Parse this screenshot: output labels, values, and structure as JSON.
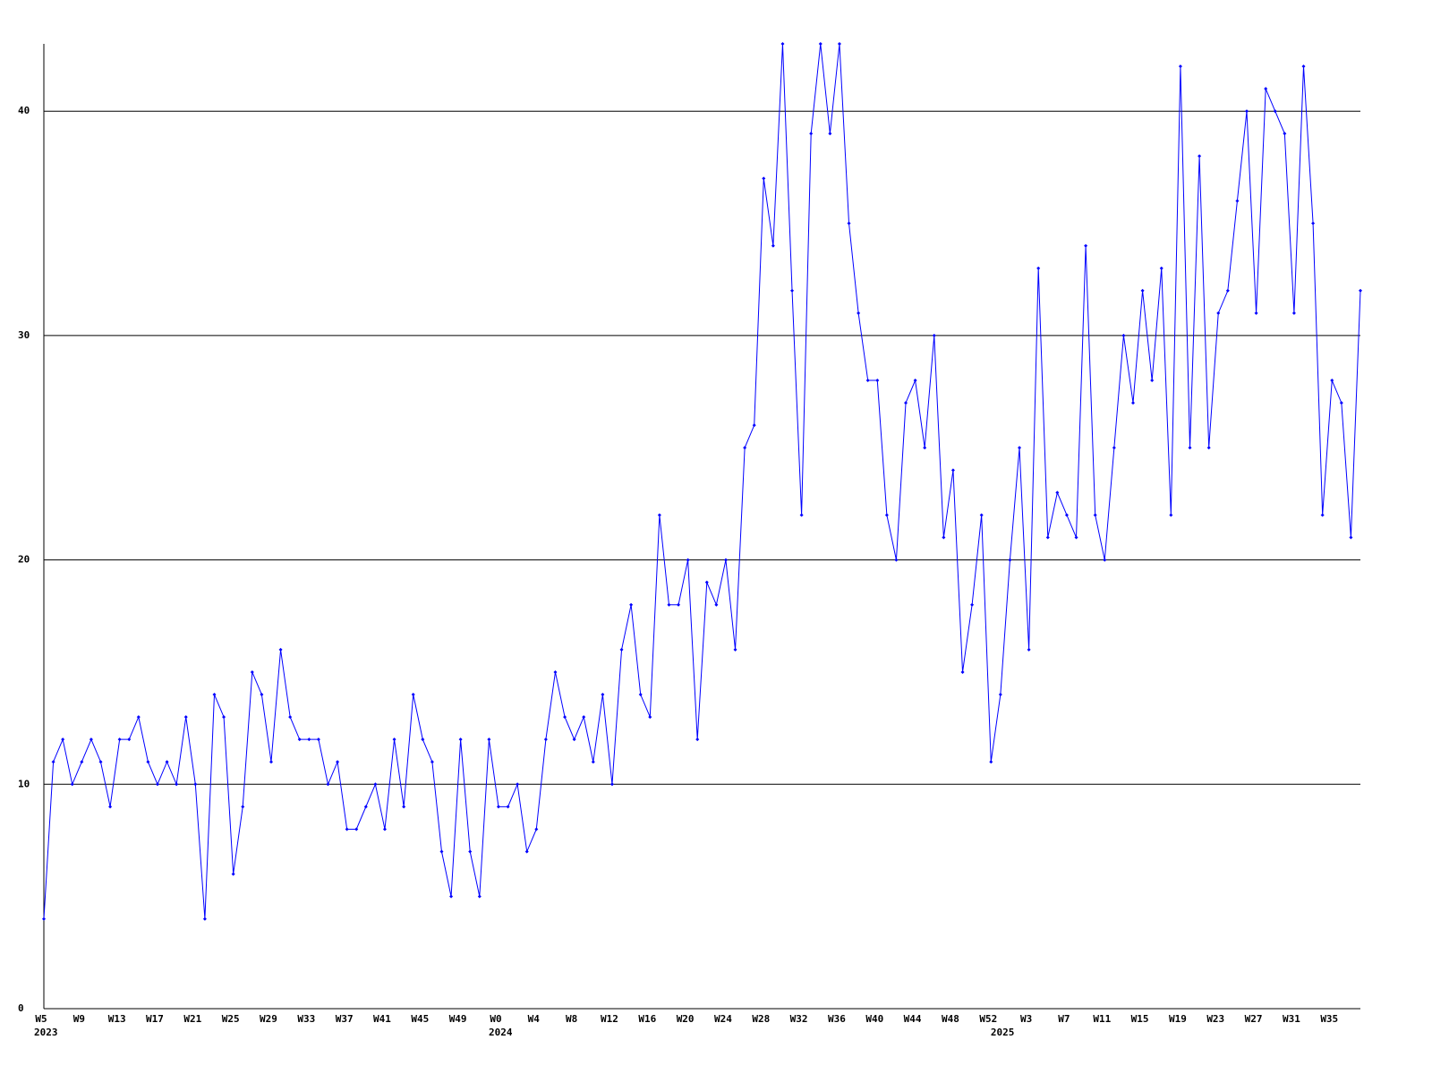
{
  "chart_data": {
    "type": "line",
    "color": "#0000ff",
    "grid": true,
    "ylim": [
      0,
      43
    ],
    "yticks": [
      0,
      10,
      20,
      30,
      40
    ],
    "categories": [
      "W5",
      null,
      null,
      null,
      "W9",
      null,
      null,
      null,
      "W13",
      null,
      null,
      null,
      "W17",
      null,
      null,
      null,
      "W21",
      null,
      null,
      null,
      "W25",
      null,
      null,
      null,
      "W29",
      null,
      null,
      null,
      "W33",
      null,
      null,
      null,
      "W37",
      null,
      null,
      null,
      "W41",
      null,
      null,
      null,
      "W45",
      null,
      null,
      null,
      "W49",
      null,
      null,
      null,
      "W0",
      null,
      null,
      null,
      "W4",
      null,
      null,
      null,
      "W8",
      null,
      null,
      null,
      "W12",
      null,
      null,
      null,
      "W16",
      null,
      null,
      null,
      "W20",
      null,
      null,
      null,
      "W24",
      null,
      null,
      null,
      "W28",
      null,
      null,
      null,
      "W32",
      null,
      null,
      null,
      "W36",
      null,
      null,
      null,
      "W40",
      null,
      null,
      null,
      "W44",
      null,
      null,
      null,
      "W48",
      null,
      null,
      null,
      "W52",
      null,
      null,
      null,
      "W3",
      null,
      null,
      null,
      "W7",
      null,
      null,
      null,
      "W11",
      null,
      null,
      null,
      "W15",
      null,
      null,
      null,
      "W19",
      null,
      null,
      null,
      "W23",
      null,
      null,
      null,
      "W27",
      null,
      null,
      null,
      "W31",
      null,
      null,
      null,
      "W35",
      null,
      null,
      null
    ],
    "years": [
      "2023",
      null,
      null,
      null,
      null,
      null,
      null,
      null,
      null,
      null,
      null,
      null,
      null,
      null,
      null,
      null,
      null,
      null,
      null,
      null,
      null,
      null,
      null,
      null,
      null,
      null,
      null,
      null,
      null,
      null,
      null,
      null,
      null,
      null,
      null,
      null,
      null,
      null,
      null,
      null,
      null,
      null,
      null,
      null,
      null,
      null,
      null,
      null,
      "2024",
      null,
      null,
      null,
      null,
      null,
      null,
      null,
      null,
      null,
      null,
      null,
      null,
      null,
      null,
      null,
      null,
      null,
      null,
      null,
      null,
      null,
      null,
      null,
      null,
      null,
      null,
      null,
      null,
      null,
      null,
      null,
      null,
      null,
      null,
      null,
      null,
      null,
      null,
      null,
      null,
      null,
      null,
      null,
      null,
      null,
      null,
      null,
      null,
      null,
      null,
      null,
      null,
      "2025",
      null,
      null,
      null,
      null,
      null,
      null,
      null,
      null,
      null,
      null,
      null,
      null,
      null,
      null,
      null,
      null,
      null,
      null,
      null,
      null,
      null,
      null,
      null,
      null,
      null,
      null,
      null,
      null,
      null,
      null,
      null,
      null,
      null,
      null,
      null,
      null,
      null,
      null
    ],
    "values": [
      4,
      11,
      12,
      10,
      11,
      12,
      11,
      9,
      12,
      12,
      13,
      11,
      10,
      11,
      10,
      13,
      10,
      4,
      14,
      13,
      6,
      9,
      15,
      14,
      11,
      16,
      13,
      12,
      12,
      12,
      10,
      11,
      8,
      8,
      9,
      10,
      8,
      12,
      9,
      14,
      12,
      11,
      7,
      5,
      12,
      7,
      5,
      12,
      9,
      9,
      10,
      7,
      8,
      12,
      15,
      13,
      12,
      13,
      11,
      14,
      10,
      16,
      18,
      14,
      13,
      22,
      18,
      18,
      20,
      12,
      19,
      18,
      20,
      16,
      25,
      26,
      37,
      34,
      43,
      32,
      22,
      39,
      43,
      39,
      43,
      35,
      31,
      28,
      28,
      22,
      20,
      27,
      28,
      25,
      30,
      21,
      24,
      15,
      18,
      22,
      11,
      14,
      20,
      25,
      16,
      33,
      21,
      23,
      22,
      21,
      34,
      22,
      20,
      25,
      30,
      27,
      32,
      28,
      33,
      22,
      42,
      25,
      38,
      25,
      31,
      32,
      36,
      40,
      31,
      41,
      40,
      39,
      31,
      42,
      35,
      22,
      28,
      27,
      21,
      32
    ]
  }
}
